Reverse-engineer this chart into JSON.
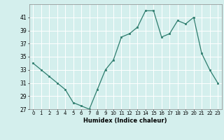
{
  "x": [
    0,
    1,
    2,
    3,
    4,
    5,
    6,
    7,
    8,
    9,
    10,
    11,
    12,
    13,
    14,
    15,
    16,
    17,
    18,
    19,
    20,
    21,
    22,
    23
  ],
  "y": [
    34,
    33,
    32,
    31,
    30,
    28,
    27.5,
    27,
    30,
    33,
    34.5,
    38,
    38.5,
    39.5,
    42,
    42,
    38,
    38.5,
    40.5,
    40,
    41,
    35.5,
    33,
    31
  ],
  "xlabel": "Humidex (Indice chaleur)",
  "line_color": "#2e7d6e",
  "marker_color": "#2e7d6e",
  "bg_color": "#d4efed",
  "grid_color": "#ffffff",
  "text_color": "#000000",
  "ylim": [
    27,
    43
  ],
  "xlim": [
    -0.5,
    23.5
  ],
  "yticks": [
    27,
    29,
    31,
    33,
    35,
    37,
    39,
    41
  ],
  "xtick_labels": [
    "0",
    "1",
    "2",
    "3",
    "4",
    "5",
    "6",
    "7",
    "8",
    "9",
    "10",
    "11",
    "12",
    "13",
    "14",
    "15",
    "16",
    "17",
    "18",
    "19",
    "20",
    "21",
    "22",
    "23"
  ]
}
